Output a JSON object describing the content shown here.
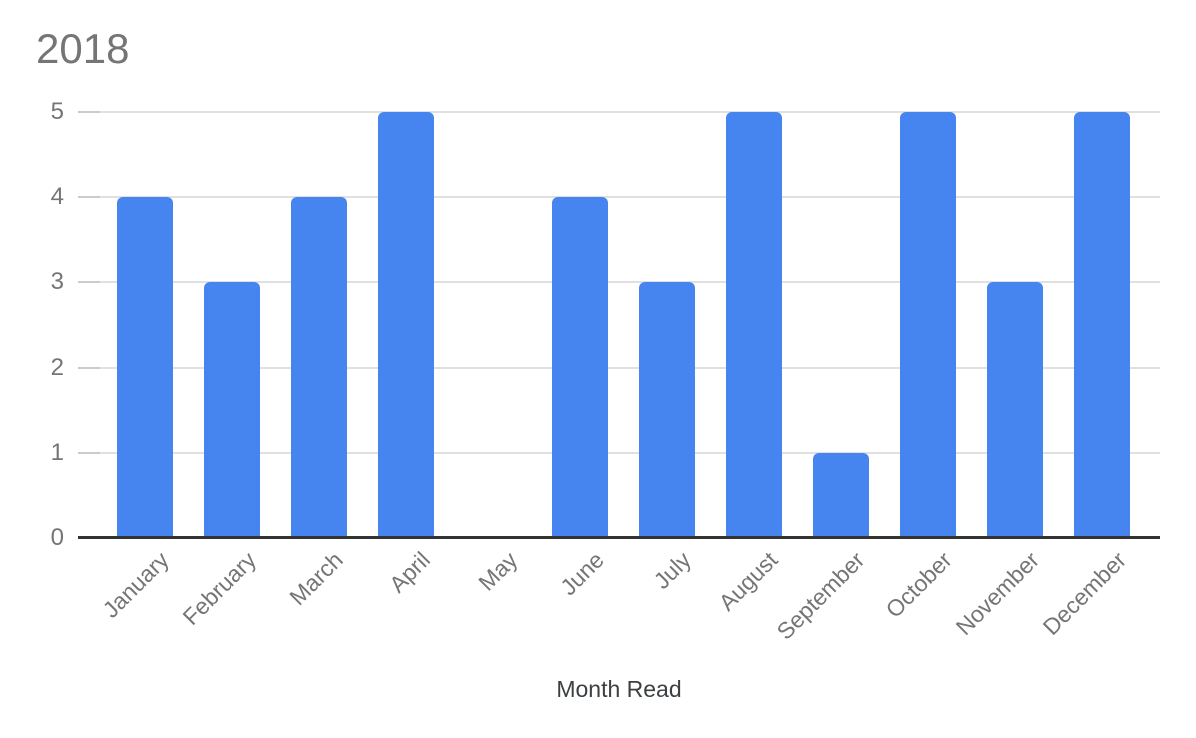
{
  "chart_data": {
    "type": "bar",
    "title": "2018",
    "categories": [
      "January",
      "February",
      "March",
      "April",
      "May",
      "June",
      "July",
      "August",
      "September",
      "October",
      "November",
      "December"
    ],
    "values": [
      4,
      3,
      4,
      5,
      0,
      4,
      3,
      5,
      1,
      5,
      3,
      5
    ],
    "xlabel": "Month Read",
    "ylabel": "",
    "ylim": [
      0,
      5
    ],
    "yticks": [
      0,
      1,
      2,
      3,
      4,
      5
    ],
    "grid": true,
    "legend": "none",
    "colors": {
      "bar": "#4685f0",
      "gridline": "#e0e0e0",
      "tick_stub": "#cccccc",
      "axis_line": "#333333",
      "title": "#757575",
      "tick_labels": "#757575",
      "axis_title": "#3c4043",
      "background": "#ffffff"
    }
  }
}
